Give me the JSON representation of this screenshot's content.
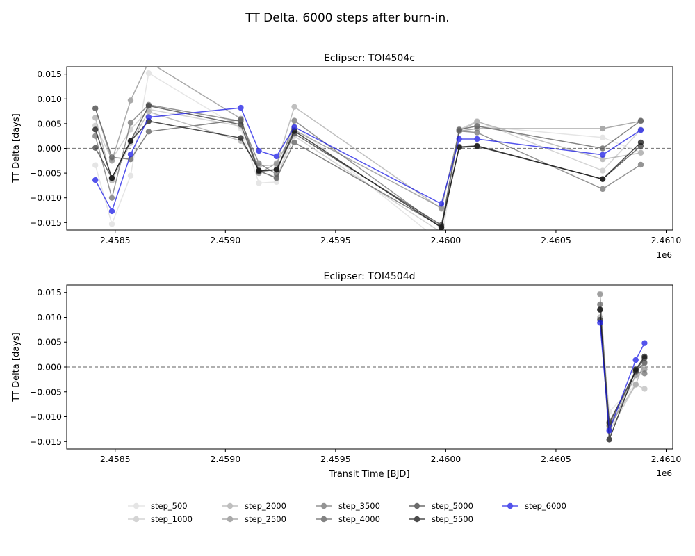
{
  "figure": {
    "suptitle": "TT Delta. 6000 steps after burn-in."
  },
  "chart_data": [
    {
      "type": "line",
      "title": "Eclipser: TOI4504c",
      "xlabel": "",
      "ylabel": "TT Delta [days]",
      "x_offset_label": "1e6",
      "xlim": [
        2.45828,
        2.46103
      ],
      "ylim": [
        -0.0165,
        0.0165
      ],
      "xticks": [
        2.4585,
        2.459,
        2.4595,
        2.46,
        2.4605,
        2.461
      ],
      "xtick_labels": [
        "2.4585",
        "2.4590",
        "2.4595",
        "2.4600",
        "2.4605",
        "2.4610"
      ],
      "yticks": [
        0.015,
        0.01,
        0.005,
        0.0,
        -0.005,
        -0.01,
        -0.015
      ],
      "ytick_labels": [
        "0.015",
        "0.010",
        "0.005",
        "0.000",
        "−0.005",
        "−0.010",
        "−0.015"
      ],
      "reference_line": 0,
      "x": [
        2.45841,
        2.458485,
        2.45857,
        2.458652,
        2.45907,
        2.459152,
        2.459232,
        2.459313,
        2.45998,
        2.460061,
        2.460142,
        2.460712,
        2.460885
      ],
      "series": [
        {
          "name": "step_500",
          "color": "#dddddd",
          "values": [
            -0.0034,
            -0.0153,
            -0.0055,
            0.0152,
            0.004,
            -0.007,
            -0.0068,
            0.0046,
            -0.019,
            0.004,
            0.0045,
            0.0022,
            -0.0008
          ]
        },
        {
          "name": "step_1000",
          "color": "#c6c6c6",
          "values": [
            0.0046,
            -0.0022,
            0.0038,
            0.0079,
            0.0045,
            -0.0047,
            -0.0058,
            0.0025,
            -0.017,
            0.0038,
            0.0055,
            -0.0045,
            0.0038
          ]
        },
        {
          "name": "step_2000",
          "color": "#aaaaaa",
          "values": [
            0.0062,
            -0.0065,
            0.0011,
            0.0074,
            0.0015,
            -0.0036,
            -0.0033,
            0.0084,
            -0.0122,
            0.0035,
            0.0054,
            -0.0022,
            -0.0009
          ]
        },
        {
          "name": "step_2500",
          "color": "#8e8e8e",
          "values": [
            0.0081,
            -0.0025,
            0.0097,
            0.0175,
            0.006,
            -0.005,
            -0.003,
            0.0037,
            -0.012,
            0.0035,
            0.004,
            0.004,
            0.0055
          ]
        },
        {
          "name": "step_3500",
          "color": "#717171",
          "values": [
            0.0025,
            -0.01,
            0.0052,
            0.0088,
            0.0055,
            -0.003,
            -0.0052,
            0.0056,
            -0.016,
            0.0035,
            0.0032,
            -0.0082,
            -0.0033
          ]
        },
        {
          "name": "step_4000",
          "color": "#5a5a5a",
          "values": [
            0.0081,
            -0.0018,
            -0.0022,
            0.0034,
            0.0058,
            -0.0045,
            -0.006,
            0.0012,
            -0.0158,
            0.0038,
            0.0045,
            0.0,
            0.0056
          ]
        },
        {
          "name": "step_5000",
          "color": "#3c3c3c",
          "values": [
            0.0001,
            -0.006,
            0.0015,
            0.0086,
            0.0048,
            -0.0047,
            -0.0043,
            0.003,
            -0.0155,
            0.0002,
            0.0004,
            -0.0062,
            0.0005
          ]
        },
        {
          "name": "step_5500",
          "color": "#111111",
          "values": [
            0.0038,
            -0.006,
            0.0015,
            0.0055,
            0.0021,
            -0.0045,
            -0.0043,
            0.0035,
            -0.016,
            0.0003,
            0.0005,
            -0.0062,
            0.0012
          ]
        },
        {
          "name": "step_6000",
          "color": "#1a1ae6",
          "values": [
            -0.0064,
            -0.0127,
            -0.0012,
            0.0063,
            0.0082,
            -0.0005,
            -0.0016,
            0.0043,
            -0.0112,
            0.0019,
            0.0019,
            -0.0013,
            0.0037
          ]
        }
      ]
    },
    {
      "type": "line",
      "title": "Eclipser: TOI4504d",
      "xlabel": "Transit Time [BJD]",
      "ylabel": "TT Delta [days]",
      "x_offset_label": "1e6",
      "xlim": [
        2.45828,
        2.46103
      ],
      "ylim": [
        -0.0165,
        0.0165
      ],
      "xticks": [
        2.4585,
        2.459,
        2.4595,
        2.46,
        2.4605,
        2.461
      ],
      "xtick_labels": [
        "2.4585",
        "2.4590",
        "2.4595",
        "2.4600",
        "2.4605",
        "2.4610"
      ],
      "yticks": [
        0.015,
        0.01,
        0.005,
        0.0,
        -0.005,
        -0.01,
        -0.015
      ],
      "ytick_labels": [
        "0.015",
        "0.010",
        "0.005",
        "0.000",
        "−0.005",
        "−0.010",
        "−0.015"
      ],
      "reference_line": 0,
      "x": [
        2.4607,
        2.460742,
        2.460862,
        2.460902
      ],
      "series": [
        {
          "name": "step_500",
          "color": "#dddddd",
          "values": [
            0.0125,
            -0.009,
            -0.0035,
            -0.0044
          ]
        },
        {
          "name": "step_1000",
          "color": "#c6c6c6",
          "values": [
            0.0148,
            -0.013,
            -0.0036,
            -0.0044
          ]
        },
        {
          "name": "step_2000",
          "color": "#aaaaaa",
          "values": [
            0.01,
            -0.012,
            -0.0035,
            0.001
          ]
        },
        {
          "name": "step_2500",
          "color": "#8e8e8e",
          "values": [
            0.0146,
            -0.0125,
            -0.0017,
            -0.0005
          ]
        },
        {
          "name": "step_3500",
          "color": "#717171",
          "values": [
            0.0126,
            -0.0118,
            -0.001,
            -0.0013
          ]
        },
        {
          "name": "step_4000",
          "color": "#5a5a5a",
          "values": [
            0.0116,
            -0.0111,
            -0.0009,
            0.0008
          ]
        },
        {
          "name": "step_5000",
          "color": "#3c3c3c",
          "values": [
            0.0095,
            -0.0113,
            -0.0008,
            0.0018
          ]
        },
        {
          "name": "step_5500",
          "color": "#111111",
          "values": [
            0.0115,
            -0.0146,
            -0.0005,
            0.0021
          ]
        },
        {
          "name": "step_6000",
          "color": "#1a1ae6",
          "values": [
            0.0089,
            -0.0128,
            0.0014,
            0.0048
          ]
        }
      ]
    }
  ],
  "legend": {
    "placement": "bottom-center",
    "ncol": 5,
    "entries": [
      "step_500",
      "step_1000",
      "step_2000",
      "step_2500",
      "step_3500",
      "step_4000",
      "step_5000",
      "step_5500",
      "step_6000"
    ]
  }
}
